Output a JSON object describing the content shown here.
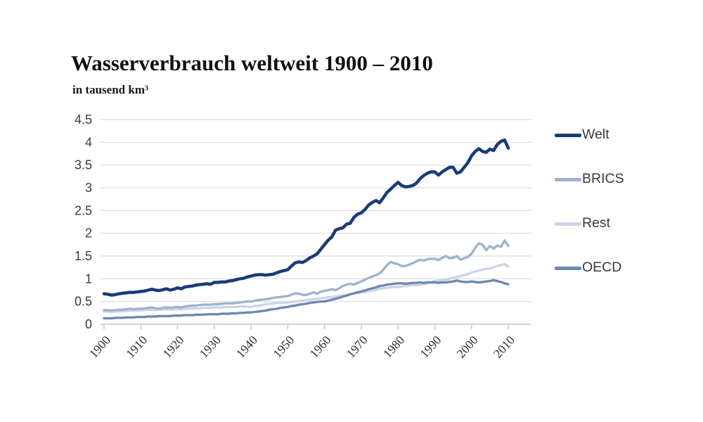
{
  "header": {
    "title": "Wasserverbrauch weltweit 1900 – 2010",
    "subtitle": "in tausend km³"
  },
  "legend": {
    "position": "right",
    "items": [
      {
        "label": "Welt",
        "color": "#1b3a78"
      },
      {
        "label": "BRICS",
        "color": "#9fb3ce"
      },
      {
        "label": "Rest",
        "color": "#c9d6e6"
      },
      {
        "label": "OECD",
        "color": "#6d89b2"
      }
    ]
  },
  "colors": {
    "background": "#ffffff",
    "grid": "#dcdcdc",
    "axis": "#c6c6c6",
    "title_text": "#111111",
    "axis_text": "#3b3b3b"
  },
  "chart_data": {
    "type": "line",
    "title": "Wasserverbrauch weltweit 1900 – 2010",
    "subtitle": "in tausend km³",
    "unit": "tausend km³",
    "grid": true,
    "legend_position": "right",
    "x": {
      "start": 1900,
      "end": 2010,
      "step": 1,
      "tick_years": [
        1900,
        1910,
        1920,
        1930,
        1940,
        1950,
        1960,
        1970,
        1980,
        1990,
        2000,
        2010
      ],
      "tick_labels": [
        "1900",
        "1910",
        "1920",
        "1930",
        "1940",
        "1950",
        "1960",
        "1970",
        "1980",
        "1990",
        "2000",
        "2010"
      ]
    },
    "y": {
      "min": 0,
      "max": 4.5,
      "tick_step": 0.5,
      "ticks": [
        0,
        0.5,
        1,
        1.5,
        2,
        2.5,
        3,
        3.5,
        4,
        4.5
      ],
      "tick_labels": [
        "0",
        "0.5",
        "1",
        "1.5",
        "2",
        "2.5",
        "3",
        "3.5",
        "4",
        "4.5"
      ]
    },
    "series": [
      {
        "name": "Welt",
        "color": "#1b3a78",
        "stroke_width": 4.5,
        "values": [
          0.67,
          0.66,
          0.64,
          0.65,
          0.67,
          0.68,
          0.69,
          0.7,
          0.7,
          0.71,
          0.72,
          0.73,
          0.75,
          0.77,
          0.75,
          0.74,
          0.76,
          0.78,
          0.75,
          0.77,
          0.8,
          0.78,
          0.82,
          0.83,
          0.84,
          0.86,
          0.87,
          0.88,
          0.89,
          0.88,
          0.92,
          0.92,
          0.93,
          0.93,
          0.95,
          0.96,
          0.98,
          1.0,
          1.01,
          1.04,
          1.06,
          1.08,
          1.09,
          1.09,
          1.08,
          1.09,
          1.1,
          1.13,
          1.16,
          1.18,
          1.2,
          1.28,
          1.35,
          1.37,
          1.36,
          1.4,
          1.46,
          1.5,
          1.55,
          1.65,
          1.75,
          1.85,
          1.92,
          2.07,
          2.1,
          2.12,
          2.2,
          2.22,
          2.35,
          2.42,
          2.45,
          2.52,
          2.62,
          2.68,
          2.72,
          2.67,
          2.78,
          2.9,
          2.97,
          3.05,
          3.12,
          3.05,
          3.02,
          3.03,
          3.05,
          3.1,
          3.2,
          3.27,
          3.32,
          3.35,
          3.35,
          3.28,
          3.35,
          3.4,
          3.45,
          3.45,
          3.32,
          3.35,
          3.45,
          3.55,
          3.7,
          3.8,
          3.86,
          3.8,
          3.78,
          3.85,
          3.82,
          3.95,
          4.02,
          4.05,
          3.87
        ]
      },
      {
        "name": "BRICS",
        "color": "#9fb3ce",
        "stroke_width": 3.4,
        "values": [
          0.31,
          0.31,
          0.3,
          0.31,
          0.32,
          0.32,
          0.33,
          0.34,
          0.33,
          0.34,
          0.34,
          0.35,
          0.36,
          0.37,
          0.35,
          0.34,
          0.36,
          0.37,
          0.36,
          0.37,
          0.38,
          0.37,
          0.39,
          0.4,
          0.41,
          0.41,
          0.42,
          0.43,
          0.43,
          0.43,
          0.44,
          0.44,
          0.45,
          0.46,
          0.46,
          0.46,
          0.47,
          0.48,
          0.49,
          0.5,
          0.5,
          0.52,
          0.53,
          0.54,
          0.55,
          0.56,
          0.58,
          0.59,
          0.6,
          0.61,
          0.62,
          0.65,
          0.68,
          0.67,
          0.65,
          0.64,
          0.67,
          0.7,
          0.67,
          0.72,
          0.73,
          0.75,
          0.77,
          0.75,
          0.79,
          0.84,
          0.87,
          0.89,
          0.87,
          0.91,
          0.94,
          0.98,
          1.02,
          1.05,
          1.08,
          1.12,
          1.2,
          1.3,
          1.37,
          1.34,
          1.32,
          1.28,
          1.28,
          1.31,
          1.34,
          1.38,
          1.42,
          1.4,
          1.43,
          1.44,
          1.44,
          1.41,
          1.46,
          1.5,
          1.45,
          1.46,
          1.5,
          1.42,
          1.45,
          1.48,
          1.55,
          1.68,
          1.78,
          1.75,
          1.63,
          1.72,
          1.66,
          1.73,
          1.7,
          1.84,
          1.72
        ]
      },
      {
        "name": "Rest",
        "color": "#c9d6e6",
        "stroke_width": 3.4,
        "values": [
          0.28,
          0.28,
          0.27,
          0.28,
          0.28,
          0.29,
          0.29,
          0.3,
          0.3,
          0.3,
          0.31,
          0.31,
          0.32,
          0.32,
          0.31,
          0.32,
          0.32,
          0.33,
          0.32,
          0.33,
          0.33,
          0.33,
          0.34,
          0.34,
          0.35,
          0.35,
          0.35,
          0.36,
          0.36,
          0.36,
          0.37,
          0.37,
          0.37,
          0.38,
          0.38,
          0.38,
          0.38,
          0.39,
          0.39,
          0.39,
          0.38,
          0.4,
          0.41,
          0.42,
          0.44,
          0.45,
          0.46,
          0.47,
          0.47,
          0.48,
          0.48,
          0.49,
          0.5,
          0.51,
          0.52,
          0.53,
          0.54,
          0.55,
          0.56,
          0.57,
          0.58,
          0.59,
          0.6,
          0.61,
          0.62,
          0.63,
          0.64,
          0.66,
          0.67,
          0.69,
          0.7,
          0.71,
          0.73,
          0.74,
          0.76,
          0.78,
          0.79,
          0.8,
          0.81,
          0.82,
          0.82,
          0.83,
          0.84,
          0.85,
          0.86,
          0.86,
          0.87,
          0.88,
          0.9,
          0.92,
          0.95,
          0.96,
          0.97,
          0.98,
          1.0,
          1.02,
          1.04,
          1.06,
          1.08,
          1.1,
          1.14,
          1.16,
          1.18,
          1.2,
          1.22,
          1.23,
          1.25,
          1.28,
          1.3,
          1.32,
          1.27
        ]
      },
      {
        "name": "OECD",
        "color": "#6d89b2",
        "stroke_width": 3.4,
        "values": [
          0.13,
          0.13,
          0.13,
          0.14,
          0.14,
          0.14,
          0.15,
          0.15,
          0.15,
          0.16,
          0.16,
          0.16,
          0.17,
          0.17,
          0.17,
          0.18,
          0.18,
          0.18,
          0.18,
          0.19,
          0.19,
          0.19,
          0.2,
          0.2,
          0.2,
          0.21,
          0.21,
          0.21,
          0.22,
          0.22,
          0.22,
          0.22,
          0.23,
          0.23,
          0.23,
          0.24,
          0.24,
          0.25,
          0.25,
          0.26,
          0.26,
          0.27,
          0.28,
          0.29,
          0.3,
          0.32,
          0.33,
          0.34,
          0.36,
          0.37,
          0.38,
          0.4,
          0.41,
          0.43,
          0.44,
          0.45,
          0.47,
          0.48,
          0.49,
          0.5,
          0.5,
          0.52,
          0.54,
          0.56,
          0.58,
          0.61,
          0.63,
          0.66,
          0.68,
          0.7,
          0.72,
          0.74,
          0.77,
          0.79,
          0.81,
          0.84,
          0.85,
          0.87,
          0.88,
          0.89,
          0.9,
          0.9,
          0.89,
          0.9,
          0.91,
          0.91,
          0.92,
          0.91,
          0.92,
          0.92,
          0.92,
          0.91,
          0.92,
          0.92,
          0.93,
          0.94,
          0.96,
          0.94,
          0.93,
          0.93,
          0.94,
          0.93,
          0.92,
          0.93,
          0.94,
          0.95,
          0.97,
          0.95,
          0.93,
          0.9,
          0.88
        ]
      }
    ]
  }
}
